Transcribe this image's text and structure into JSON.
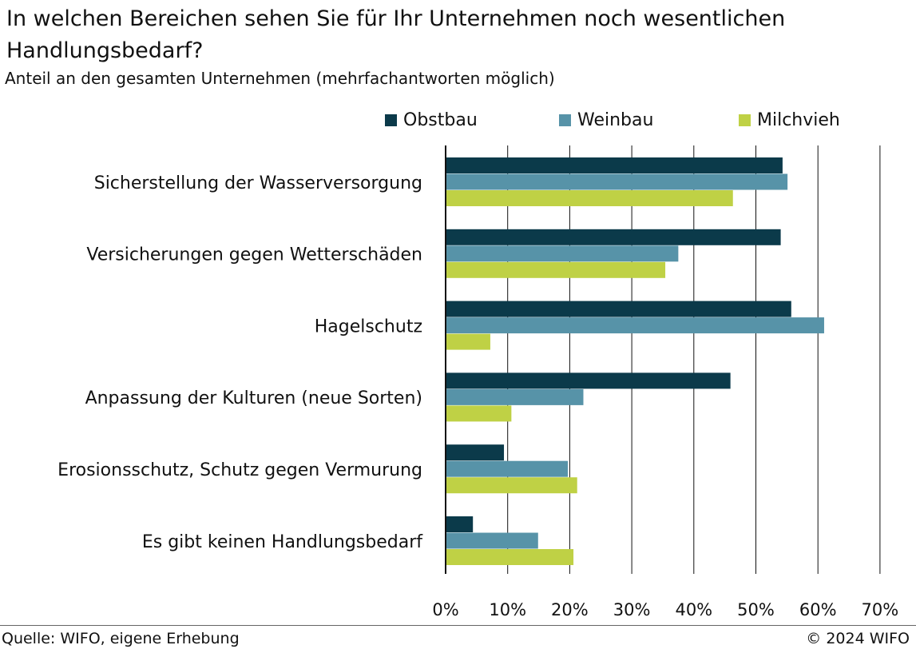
{
  "header": {
    "title": "In welchen Bereichen sehen Sie für Ihr Unternehmen noch wesentlichen Handlungsbedarf?",
    "subtitle": "Anteil an den gesamten Unternehmen (mehrfachantworten möglich)"
  },
  "footer": {
    "source": "Quelle: WIFO, eigene Erhebung",
    "copyright": "© 2024 WIFO"
  },
  "chart_data": {
    "type": "bar",
    "orientation": "horizontal",
    "title": "In welchen Bereichen sehen Sie für Ihr Unternehmen noch wesentlichen Handlungsbedarf?",
    "subtitle": "Anteil an den gesamten Unternehmen (mehrfachantworten möglich)",
    "categories": [
      "Sicherstellung der Wasserversorgung",
      "Versicherungen gegen Wetterschäden",
      "Hagelschutz",
      "Anpassung der Kulturen (neue Sorten)",
      "Erosionsschutz, Schutz gegen Vermurung",
      "Es gibt keinen Handlungsbedarf"
    ],
    "series": [
      {
        "name": "Obstbau",
        "color": "#0b3a4a",
        "values": [
          54.3,
          54.0,
          55.7,
          45.9,
          9.4,
          4.4
        ]
      },
      {
        "name": "Weinbau",
        "color": "#5793a8",
        "values": [
          55.1,
          37.5,
          61.0,
          22.2,
          19.7,
          14.9
        ]
      },
      {
        "name": "Milchvieh",
        "color": "#bfd145",
        "values": [
          46.3,
          35.4,
          7.2,
          10.6,
          21.2,
          20.6
        ]
      }
    ],
    "xlim": [
      0,
      70
    ],
    "xticks": [
      "0%",
      "10%",
      "20%",
      "30%",
      "40%",
      "50%",
      "60%",
      "70%"
    ],
    "grid": "vertical",
    "legend": "top"
  }
}
